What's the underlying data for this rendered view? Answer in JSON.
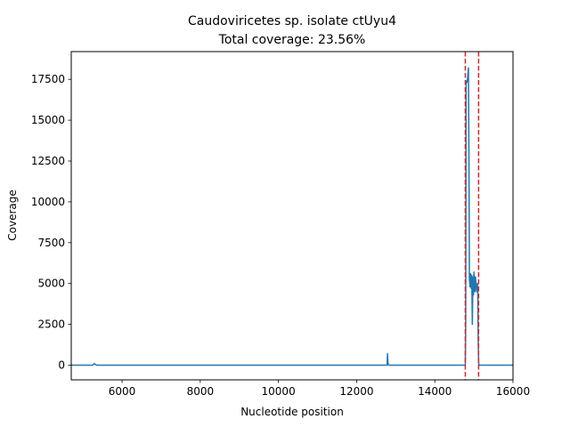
{
  "chart_data": {
    "type": "line",
    "title_line1": "Caudoviricetes sp. isolate ctUyu4",
    "title_line2": "Total coverage: 23.56%",
    "xlabel": "Nucleotide position",
    "ylabel": "Coverage",
    "xlim": [
      4700,
      16000
    ],
    "ylim": [
      -900,
      19200
    ],
    "xticks": [
      6000,
      8000,
      10000,
      12000,
      14000,
      16000
    ],
    "yticks": [
      0,
      2500,
      5000,
      7500,
      10000,
      12500,
      15000,
      17500
    ],
    "grid": false,
    "series": [
      {
        "color": "#1f77b4",
        "x": [
          4700,
          5250,
          5290,
          5320,
          5360,
          7000,
          9000,
          11000,
          12000,
          12750,
          12780,
          12790,
          12800,
          12810,
          12830,
          13200,
          14000,
          14750,
          14780,
          14790,
          14800,
          14820,
          14840,
          14860,
          14875,
          14885,
          14900,
          14915,
          14930,
          14945,
          14960,
          14975,
          14990,
          15000,
          15010,
          15025,
          15040,
          15055,
          15070,
          15090,
          15100,
          15110,
          15120,
          15130,
          15200,
          16000
        ],
        "y": [
          0,
          0,
          100,
          30,
          0,
          0,
          0,
          0,
          0,
          0,
          20,
          700,
          200,
          20,
          0,
          0,
          0,
          0,
          0,
          2500,
          17400,
          17300,
          17600,
          18200,
          12000,
          5300,
          4800,
          5600,
          4700,
          5500,
          2500,
          5400,
          4300,
          5700,
          5200,
          4500,
          5400,
          4900,
          4500,
          5000,
          4300,
          1500,
          200,
          0,
          0,
          0
        ]
      }
    ],
    "vlines": [
      {
        "x": 14780,
        "color": "#d62728",
        "style": "dashed"
      },
      {
        "x": 15120,
        "color": "#d62728",
        "style": "dashed"
      }
    ]
  }
}
